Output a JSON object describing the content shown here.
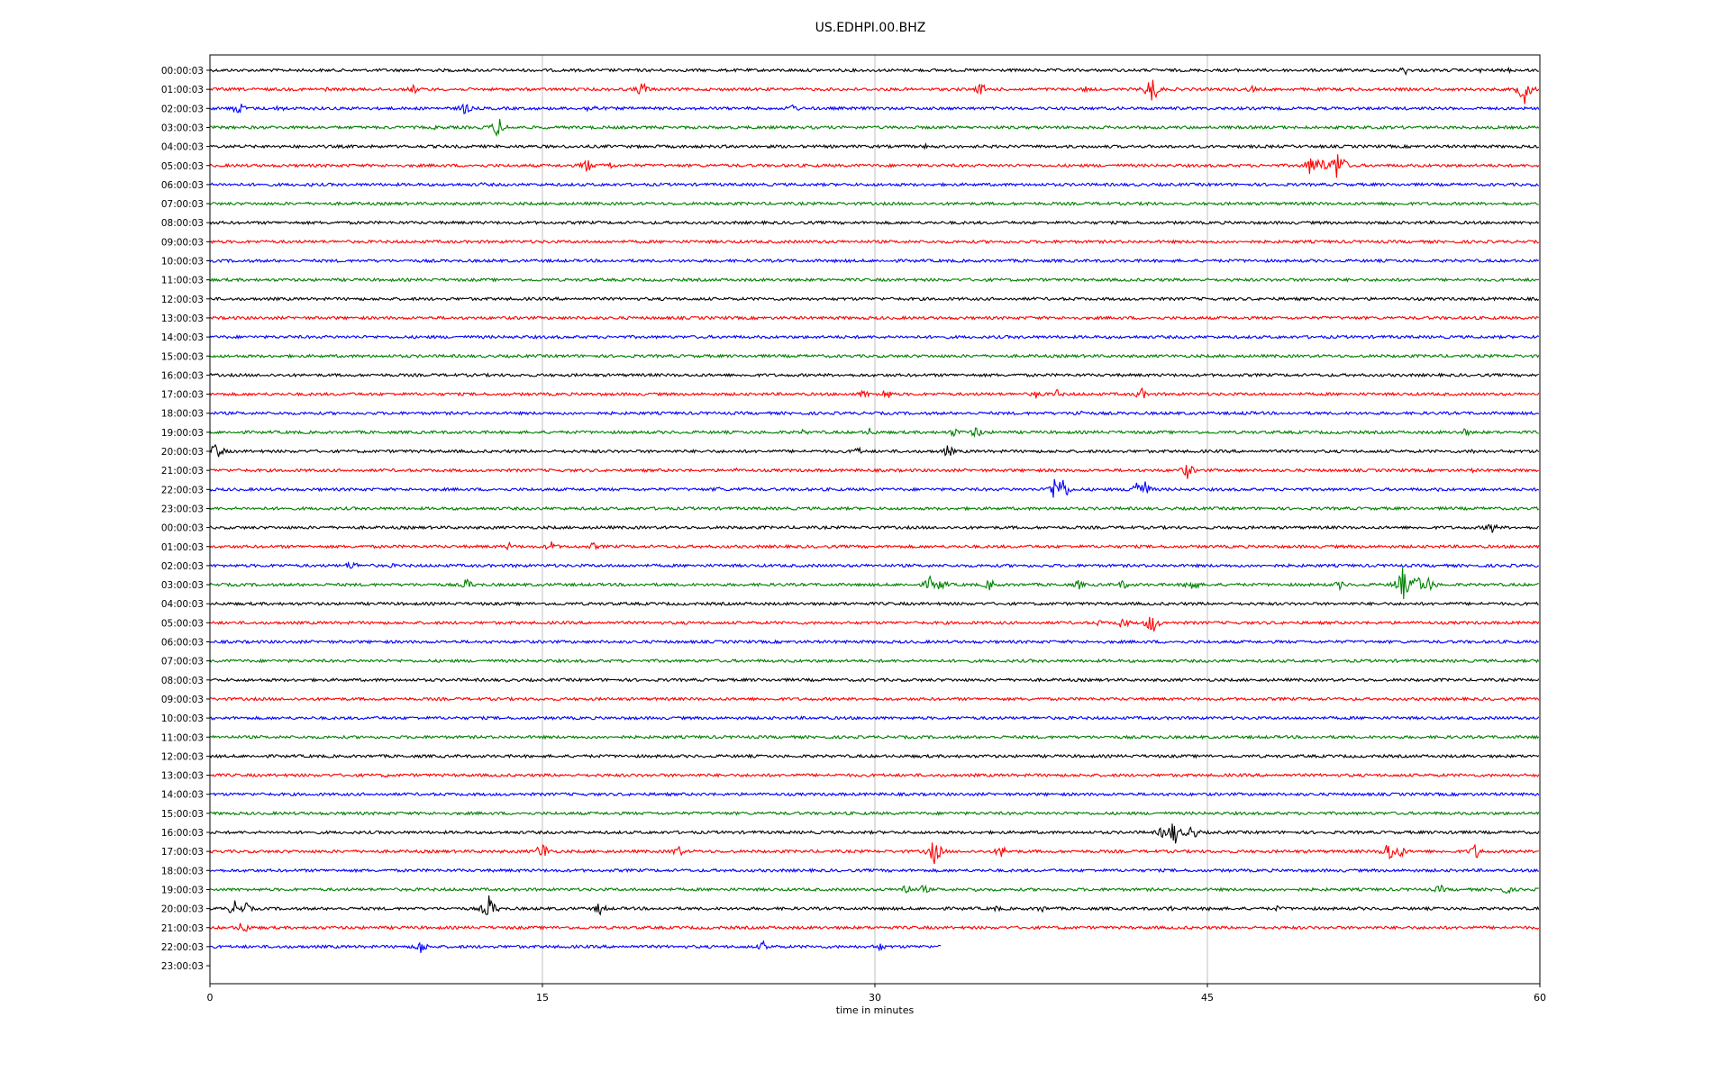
{
  "chart_data": {
    "type": "line",
    "title": "US.EDHPI.00.BHZ",
    "xlabel": "time in minutes",
    "ylabel": "",
    "xlim": [
      0,
      60
    ],
    "x_ticks": [
      0,
      15,
      30,
      45,
      60
    ],
    "x_tick_labels": [
      "0",
      "15",
      "30",
      "45",
      "60"
    ],
    "grid": "vertical lines at x ticks",
    "trace_colors": [
      "#000000",
      "#ff0000",
      "#0000ff",
      "#008000"
    ],
    "last_trace_end_minute": 33,
    "rows": [
      {
        "label": "00:00:03",
        "events": [
          [
            53.9,
            6
          ],
          [
            57.3,
            3
          ],
          [
            58.6,
            3
          ]
        ]
      },
      {
        "label": "01:00:03",
        "events": [
          [
            9.2,
            6
          ],
          [
            19.5,
            10
          ],
          [
            34.8,
            8
          ],
          [
            42.5,
            18
          ],
          [
            47.0,
            5
          ],
          [
            59.3,
            18
          ],
          [
            5.3,
            3
          ],
          [
            39.5,
            4
          ]
        ]
      },
      {
        "label": "02:00:03",
        "events": [
          [
            1.3,
            9
          ],
          [
            3.2,
            5
          ],
          [
            11.5,
            8
          ],
          [
            17.2,
            7
          ],
          [
            26.3,
            6
          ],
          [
            4.8,
            3
          ]
        ]
      },
      {
        "label": "03:00:03",
        "events": [
          [
            13.0,
            13
          ],
          [
            10.2,
            3
          ],
          [
            12.3,
            3
          ]
        ]
      },
      {
        "label": "04:00:03",
        "events": [
          [
            32.3,
            3
          ]
        ]
      },
      {
        "label": "05:00:03",
        "events": [
          [
            17.0,
            9
          ],
          [
            18.0,
            6
          ],
          [
            49.7,
            14
          ],
          [
            50.1,
            12
          ],
          [
            50.9,
            22
          ]
        ]
      },
      {
        "label": "06:00:03",
        "events": [
          [
            4.5,
            3
          ],
          [
            12.3,
            3
          ]
        ]
      },
      {
        "label": "07:00:03",
        "events": [
          [
            53.3,
            4
          ],
          [
            42.3,
            3
          ]
        ]
      },
      {
        "label": "08:00:03",
        "events": []
      },
      {
        "label": "09:00:03",
        "events": []
      },
      {
        "label": "10:00:03",
        "events": []
      },
      {
        "label": "11:00:03",
        "events": []
      },
      {
        "label": "12:00:03",
        "events": []
      },
      {
        "label": "13:00:03",
        "events": []
      },
      {
        "label": "14:00:03",
        "events": []
      },
      {
        "label": "15:00:03",
        "events": []
      },
      {
        "label": "16:00:03",
        "events": []
      },
      {
        "label": "17:00:03",
        "events": [
          [
            29.5,
            6
          ],
          [
            30.5,
            8
          ],
          [
            37.3,
            6
          ],
          [
            38.2,
            6
          ],
          [
            42.0,
            8
          ]
        ]
      },
      {
        "label": "18:00:03",
        "events": [
          [
            39.2,
            6
          ],
          [
            46.8,
            4
          ]
        ]
      },
      {
        "label": "19:00:03",
        "events": [
          [
            26.8,
            4
          ],
          [
            29.8,
            6
          ],
          [
            33.6,
            6
          ],
          [
            34.6,
            8
          ],
          [
            56.6,
            6
          ]
        ]
      },
      {
        "label": "20:00:03",
        "events": [
          [
            0.3,
            12
          ],
          [
            29.2,
            6
          ],
          [
            33.3,
            8
          ],
          [
            57.0,
            4
          ]
        ]
      },
      {
        "label": "21:00:03",
        "events": [
          [
            44.1,
            10
          ],
          [
            23.7,
            3
          ],
          [
            38.2,
            3
          ],
          [
            57.0,
            3
          ]
        ]
      },
      {
        "label": "22:00:03",
        "events": [
          [
            38.1,
            14
          ],
          [
            38.4,
            20
          ],
          [
            41.8,
            14
          ],
          [
            42.2,
            10
          ],
          [
            22.9,
            4
          ],
          [
            24.0,
            4
          ],
          [
            55.5,
            3
          ]
        ]
      },
      {
        "label": "23:00:03",
        "events": []
      },
      {
        "label": "00:00:03",
        "events": [
          [
            57.8,
            8
          ]
        ]
      },
      {
        "label": "01:00:03",
        "events": [
          [
            13.5,
            5
          ],
          [
            15.4,
            7
          ],
          [
            17.3,
            5
          ]
        ]
      },
      {
        "label": "02:00:03",
        "events": [
          [
            6.4,
            7
          ],
          [
            3.0,
            3
          ],
          [
            8.2,
            3
          ],
          [
            13.8,
            3
          ]
        ]
      },
      {
        "label": "03:00:03",
        "events": [
          [
            11.6,
            8
          ],
          [
            32.5,
            10
          ],
          [
            33.0,
            8
          ],
          [
            35.2,
            8
          ],
          [
            39.2,
            6
          ],
          [
            41.2,
            6
          ],
          [
            44.3,
            10
          ],
          [
            51.0,
            6
          ],
          [
            53.8,
            20
          ],
          [
            54.5,
            14
          ],
          [
            55.0,
            10
          ]
        ]
      },
      {
        "label": "04:00:03",
        "events": []
      },
      {
        "label": "05:00:03",
        "events": [
          [
            41.2,
            8
          ],
          [
            42.5,
            14
          ],
          [
            40.1,
            4
          ]
        ]
      },
      {
        "label": "06:00:03",
        "events": []
      },
      {
        "label": "07:00:03",
        "events": []
      },
      {
        "label": "08:00:03",
        "events": []
      },
      {
        "label": "09:00:03",
        "events": []
      },
      {
        "label": "10:00:03",
        "events": []
      },
      {
        "label": "11:00:03",
        "events": [
          [
            59.6,
            3
          ]
        ]
      },
      {
        "label": "12:00:03",
        "events": []
      },
      {
        "label": "13:00:03",
        "events": [
          [
            7.9,
            3
          ]
        ]
      },
      {
        "label": "14:00:03",
        "events": []
      },
      {
        "label": "15:00:03",
        "events": []
      },
      {
        "label": "16:00:03",
        "events": [
          [
            43.0,
            8
          ],
          [
            43.5,
            16
          ],
          [
            44.3,
            10
          ],
          [
            56.0,
            4
          ]
        ]
      },
      {
        "label": "17:00:03",
        "events": [
          [
            15.0,
            12
          ],
          [
            21.1,
            8
          ],
          [
            32.7,
            16
          ],
          [
            35.7,
            8
          ],
          [
            53.2,
            14
          ],
          [
            53.7,
            8
          ],
          [
            57.1,
            10
          ]
        ]
      },
      {
        "label": "18:00:03",
        "events": []
      },
      {
        "label": "19:00:03",
        "events": [
          [
            31.4,
            8
          ],
          [
            32.2,
            6
          ],
          [
            34.5,
            4
          ],
          [
            55.5,
            6
          ],
          [
            58.5,
            6
          ]
        ]
      },
      {
        "label": "20:00:03",
        "events": [
          [
            1.1,
            10
          ],
          [
            1.6,
            8
          ],
          [
            12.6,
            16
          ],
          [
            17.6,
            8
          ],
          [
            35.5,
            4
          ],
          [
            37.5,
            5
          ],
          [
            43.3,
            4
          ],
          [
            45.2,
            4
          ],
          [
            48.2,
            4
          ]
        ]
      },
      {
        "label": "21:00:03",
        "events": [
          [
            1.5,
            9
          ]
        ]
      },
      {
        "label": "22:00:03",
        "events": [
          [
            9.5,
            9
          ],
          [
            25.0,
            7
          ],
          [
            30.2,
            6
          ]
        ]
      },
      {
        "label": "23:00:03",
        "events": []
      }
    ]
  }
}
